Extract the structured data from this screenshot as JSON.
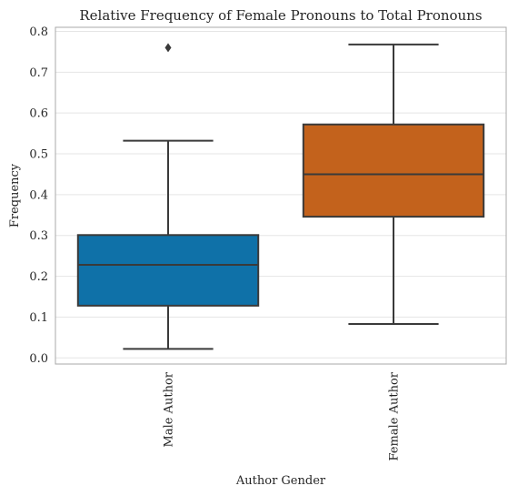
{
  "chart_data": {
    "type": "box",
    "title": "Relative Frequency of Female Pronouns to Total Pronouns",
    "xlabel": "Author Gender",
    "ylabel": "Frequency",
    "ylim": [
      -0.015,
      0.81
    ],
    "yticks": [
      0.0,
      0.1,
      0.2,
      0.3,
      0.4,
      0.5,
      0.6,
      0.7,
      0.8
    ],
    "ytick_labels": [
      "0.0",
      "0.1",
      "0.2",
      "0.3",
      "0.4",
      "0.5",
      "0.6",
      "0.7",
      "0.8"
    ],
    "grid": true,
    "categories": [
      "Male Author",
      "Female Author"
    ],
    "boxes": [
      {
        "category": "Male Author",
        "whisker_low": 0.022,
        "q1": 0.128,
        "median": 0.228,
        "q3": 0.301,
        "whisker_high": 0.532,
        "fliers": [
          0.76
        ],
        "color": "#0f71a8"
      },
      {
        "category": "Female Author",
        "whisker_low": 0.083,
        "q1": 0.346,
        "median": 0.45,
        "q3": 0.572,
        "whisker_high": 0.768,
        "fliers": [],
        "color": "#c3621c"
      }
    ]
  }
}
